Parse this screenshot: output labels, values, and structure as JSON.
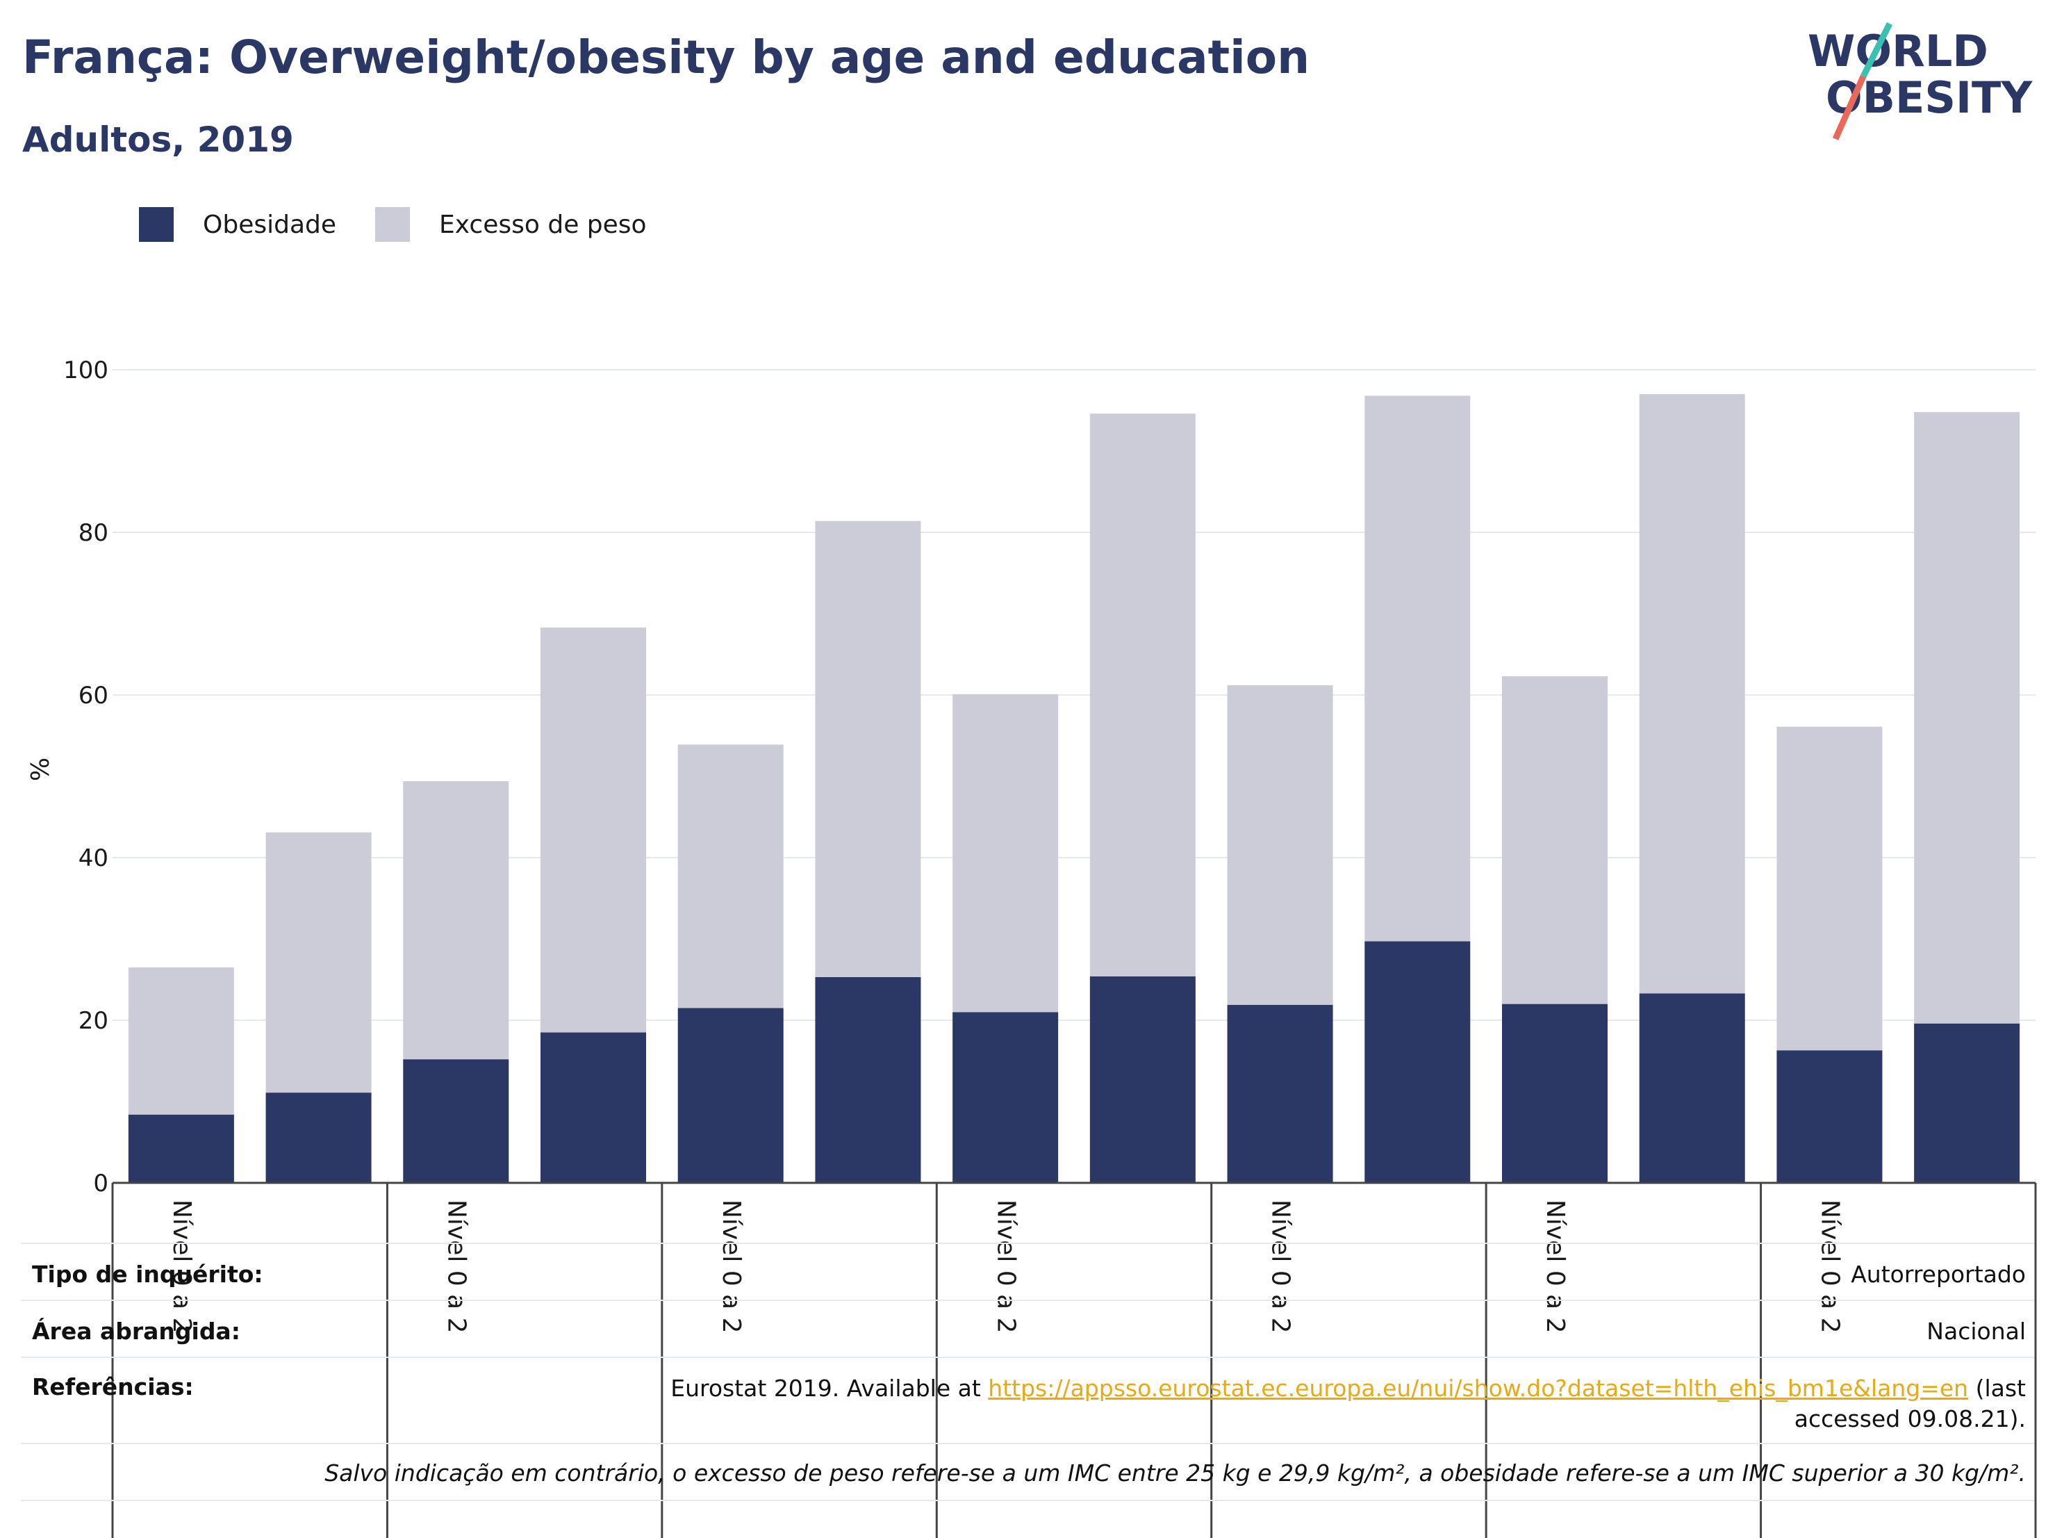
{
  "title": "França: Overweight/obesity by age and education",
  "subtitle": "Adultos, 2019",
  "legend": {
    "obesity_label": "Obesidade",
    "overweight_label": "Excesso de peso",
    "obesity_color": "#2b3764",
    "overweight_color": "#cbccd8"
  },
  "logo": {
    "line1": "WORLD",
    "line2": "OBESITY"
  },
  "chart_data": {
    "type": "bar",
    "stacked": true,
    "ylabel": "%",
    "ylim": [
      0,
      100
    ],
    "yticks": [
      0,
      20,
      40,
      60,
      80,
      100
    ],
    "grid": true,
    "legend_position": "top-left",
    "group_labels": [
      "Nível 0 a 2",
      "Nível 0 a 2",
      "Nível 0 a 2",
      "Nível 0 a 2",
      "Nível 0 a 2",
      "Nível 0 a 2",
      "Nível 0 a 2"
    ],
    "series": [
      {
        "name": "Obesidade",
        "color": "#2b3764",
        "values": [
          8.4,
          11.1,
          15.2,
          18.5,
          21.5,
          25.3,
          21.0,
          25.4,
          21.9,
          29.7,
          22.0,
          23.3,
          16.3,
          19.6
        ]
      },
      {
        "name": "Excesso de peso",
        "color": "#cbccd8",
        "values": [
          18.1,
          32.0,
          34.2,
          49.8,
          32.4,
          56.1,
          39.1,
          69.2,
          39.3,
          67.1,
          40.3,
          73.7,
          39.8,
          75.2
        ]
      }
    ]
  },
  "info": {
    "survey_key": "Tipo de inquérito:",
    "survey_val": "Autorreportado",
    "area_key": "Área abrangida:",
    "area_val": "Nacional",
    "refs_key": "Referências:",
    "refs_prefix": "Eurostat 2019. Available at ",
    "refs_link": "https://appsso.eurostat.ec.europa.eu/nui/show.do?dataset=hlth_ehis_bm1e&lang=en",
    "refs_suffix": " (last accessed 09.08.21).",
    "note": "Salvo indicação em contrário, o excesso de peso refere-se a um IMC entre 25 kg e 29,9 kg/m², a obesidade refere-se a um IMC superior a 30 kg/m²."
  }
}
